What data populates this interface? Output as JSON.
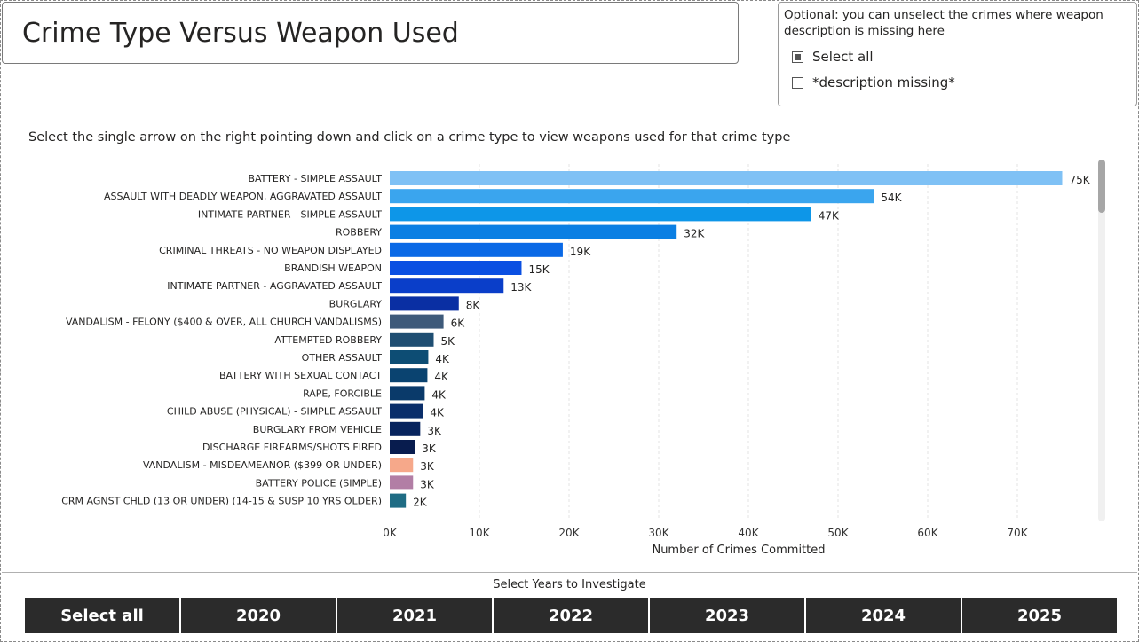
{
  "title": "Crime Type Versus Weapon Used",
  "filter": {
    "header": "Optional: you can unselect the crimes where weapon description is missing here",
    "options": [
      {
        "label": "Select all",
        "state": "partial"
      },
      {
        "label": "*description missing*",
        "state": "unchecked"
      }
    ]
  },
  "instruction": "Select the single arrow on the right pointing down and click on a crime type to view weapons used for that crime type",
  "chart_data": {
    "type": "bar",
    "orientation": "horizontal",
    "categories": [
      "BATTERY - SIMPLE ASSAULT",
      "ASSAULT WITH DEADLY WEAPON, AGGRAVATED ASSAULT",
      "INTIMATE PARTNER - SIMPLE ASSAULT",
      "ROBBERY",
      "CRIMINAL THREATS - NO WEAPON DISPLAYED",
      "BRANDISH WEAPON",
      "INTIMATE PARTNER - AGGRAVATED ASSAULT",
      "BURGLARY",
      "VANDALISM - FELONY ($400 & OVER, ALL CHURCH VANDALISMS)",
      "ATTEMPTED ROBBERY",
      "OTHER ASSAULT",
      "BATTERY WITH SEXUAL CONTACT",
      "RAPE, FORCIBLE",
      "CHILD ABUSE (PHYSICAL) - SIMPLE ASSAULT",
      "BURGLARY FROM VEHICLE",
      "DISCHARGE FIREARMS/SHOTS FIRED",
      "VANDALISM - MISDEAMEANOR ($399 OR UNDER)",
      "BATTERY POLICE (SIMPLE)",
      "CRM AGNST CHLD (13 OR UNDER) (14-15 & SUSP 10 YRS OLDER)"
    ],
    "values": [
      75000,
      54000,
      47000,
      32000,
      19300,
      14700,
      12700,
      7700,
      6000,
      4900,
      4300,
      4200,
      3900,
      3700,
      3400,
      2800,
      2600,
      2600,
      1800
    ],
    "data_labels": [
      "75K",
      "54K",
      "47K",
      "32K",
      "19K",
      "15K",
      "13K",
      "8K",
      "6K",
      "5K",
      "4K",
      "4K",
      "4K",
      "4K",
      "3K",
      "3K",
      "3K",
      "3K",
      "2K"
    ],
    "colors": [
      "#7fc1f5",
      "#3aa5ee",
      "#0d96e8",
      "#0b7fe3",
      "#0a69e6",
      "#0a4fe2",
      "#0a3ec9",
      "#0a2fa3",
      "#3e5a7a",
      "#1f4e72",
      "#0d4d74",
      "#0a4370",
      "#0a3a6a",
      "#0a2e6a",
      "#07245e",
      "#081c4e",
      "#f6a88a",
      "#b27ea5",
      "#1f6c84"
    ],
    "xlabel": "Number of Crimes Committed",
    "xticks": [
      "0K",
      "10K",
      "20K",
      "30K",
      "40K",
      "50K",
      "60K",
      "70K"
    ],
    "xlim": [
      0,
      80000
    ],
    "grid": true
  },
  "years": {
    "label": "Select Years to Investigate",
    "buttons": [
      "Select all",
      "2020",
      "2021",
      "2022",
      "2023",
      "2024",
      "2025"
    ]
  }
}
